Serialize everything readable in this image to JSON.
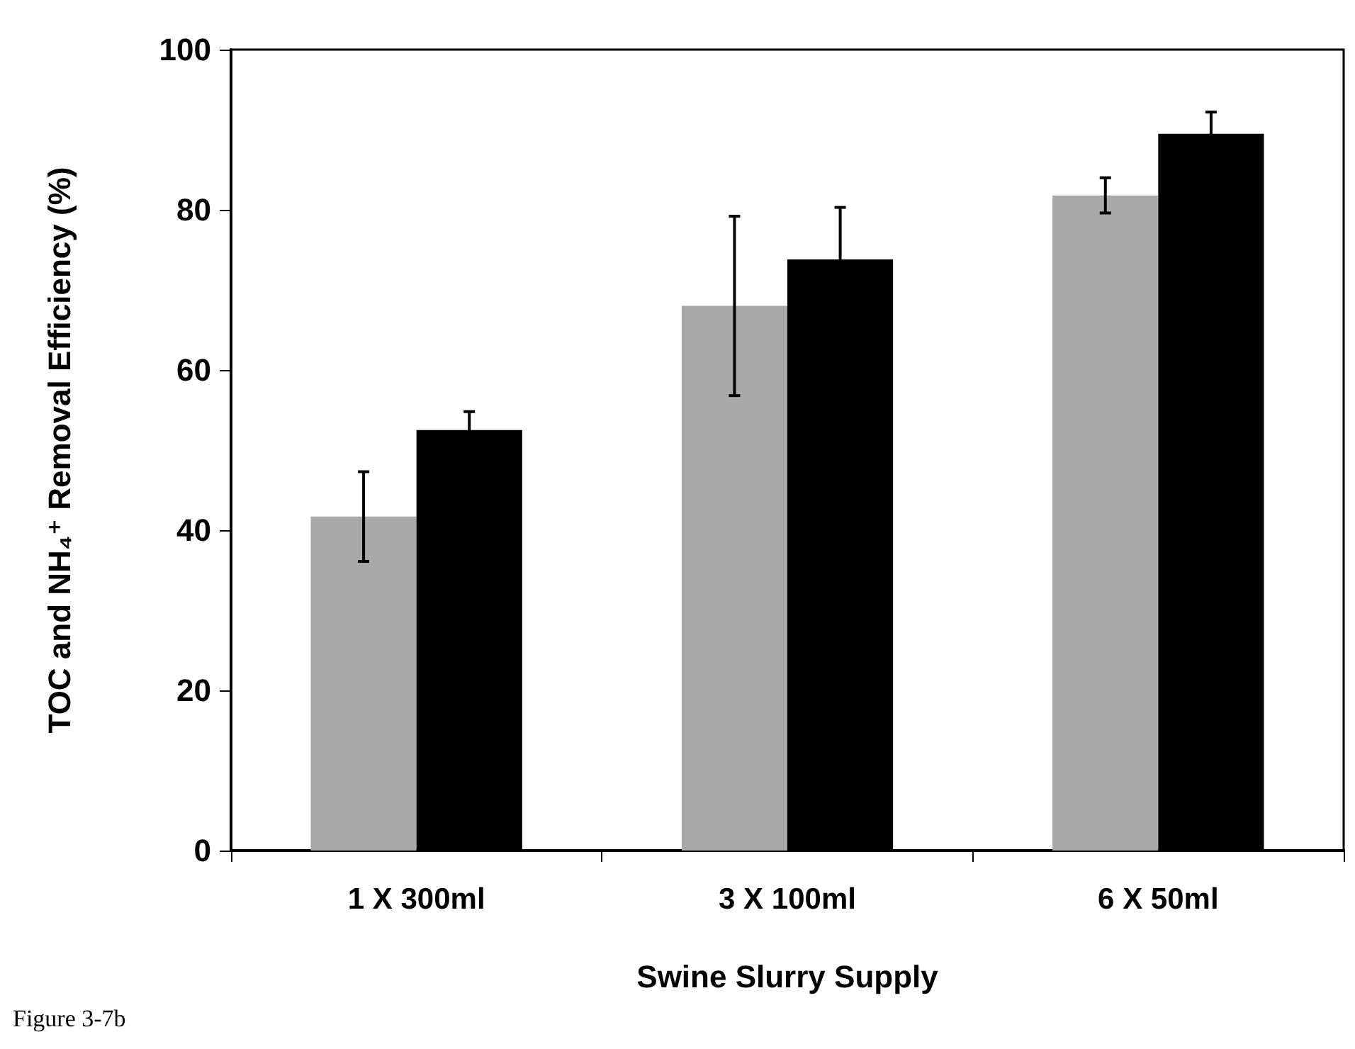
{
  "chart_data": {
    "type": "bar",
    "xlabel": "Swine Slurry Supply",
    "ylabel": "TOC and NH₄⁺ Removal Efficiency (%)",
    "categories": [
      "1 X 300ml",
      "3 X 100ml",
      "6 X 50ml"
    ],
    "series": [
      {
        "color": "#a9a9a9",
        "values": [
          41.7,
          68.0,
          81.8
        ],
        "errors": [
          5.6,
          11.2,
          2.2
        ]
      },
      {
        "color": "#000000",
        "values": [
          52.5,
          73.8,
          89.5
        ],
        "errors": [
          2.3,
          6.5,
          2.7
        ]
      }
    ],
    "ylim": [
      0,
      100
    ],
    "yticks": [
      0,
      20,
      40,
      60,
      80,
      100
    ],
    "grid": false,
    "annotations": [
      "Figure 3-7b"
    ]
  }
}
